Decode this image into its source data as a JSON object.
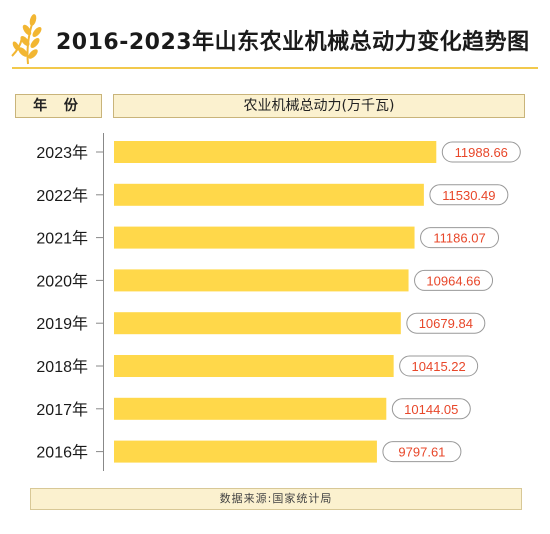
{
  "title": "2016-2023年山东农业机械总动力变化趋势图",
  "column_headers": {
    "year": "年 份",
    "value": "农业机械总动力(万千瓦)"
  },
  "source": "数据来源:国家统计局",
  "colors": {
    "bar": "#ffd84a",
    "label_text": "#e8472a",
    "accent": "#f2c94c"
  },
  "chart_data": {
    "type": "bar",
    "orientation": "horizontal",
    "title": "2016-2023年山东农业机械总动力变化趋势图",
    "xlabel": "农业机械总动力(万千瓦)",
    "ylabel": "年 份",
    "categories": [
      "2023年",
      "2022年",
      "2021年",
      "2020年",
      "2019年",
      "2018年",
      "2017年",
      "2016年"
    ],
    "values": [
      11988.66,
      11530.49,
      11186.07,
      10964.66,
      10679.84,
      10415.22,
      10144.05,
      9797.61
    ],
    "value_labels": [
      "11988.66",
      "11530.49",
      "11186.07",
      "10964.66",
      "10679.84",
      "10415.22",
      "10144.05",
      "9797.61"
    ]
  }
}
